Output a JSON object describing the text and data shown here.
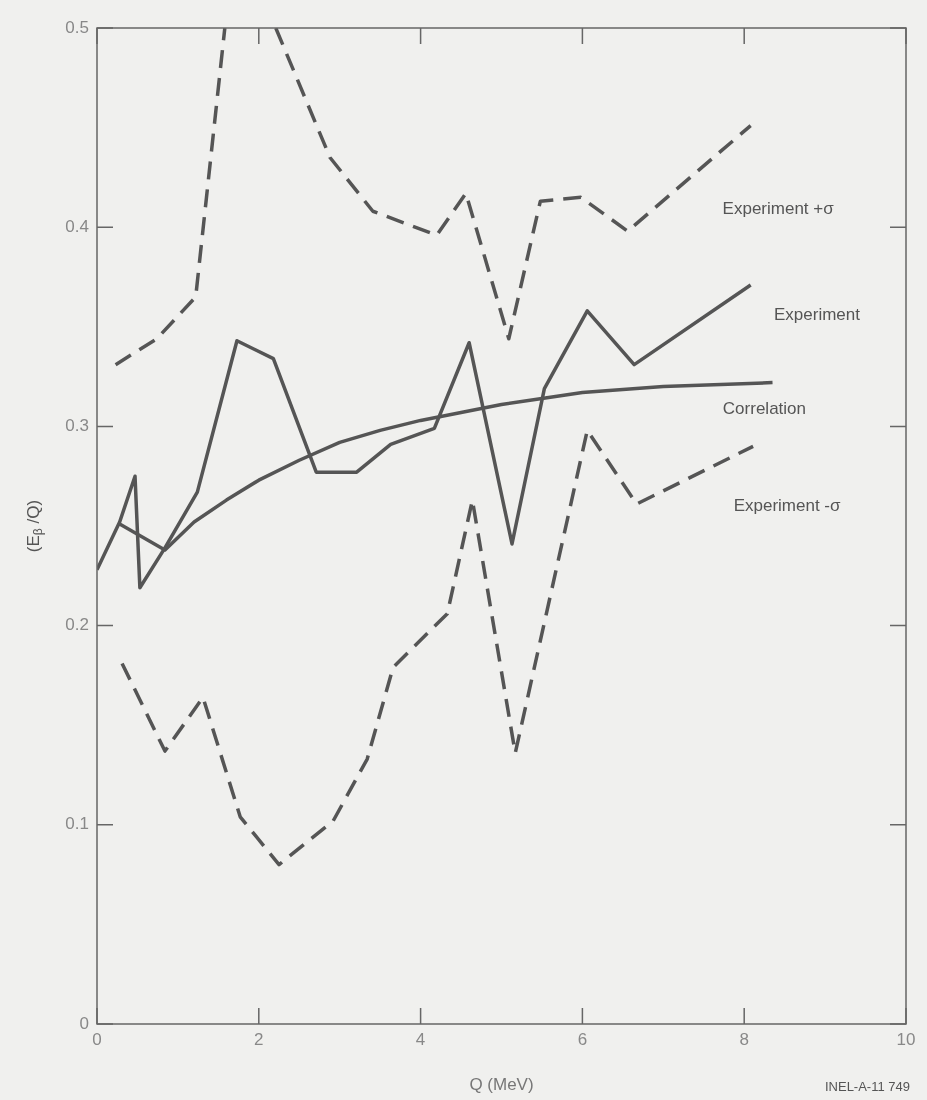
{
  "chart_data": {
    "type": "line",
    "xlabel": "Q (MeV)",
    "ylabel": "(E$_{β}$ /Q)",
    "xlim": [
      0,
      10
    ],
    "ylim": [
      0,
      0.5
    ],
    "xticks": [
      0,
      2,
      4,
      6,
      8,
      10
    ],
    "yticks": [
      0,
      0.1,
      0.2,
      0.3,
      0.4,
      0.5
    ],
    "grid": false,
    "legend": false,
    "marker": "none",
    "annotations": [
      "INEL-A-11 749"
    ],
    "series": [
      {
        "name": "Experiment +σ",
        "color": "#555555",
        "line_style": "dashed",
        "x": [
          0.23,
          0.74,
          1.22,
          1.58,
          1.9,
          2.21,
          2.88,
          3.41,
          4.2,
          4.56,
          5.09,
          5.48,
          5.98,
          6.56,
          8.08
        ],
        "values": [
          0.331,
          0.344,
          0.365,
          0.5,
          null,
          0.5,
          0.435,
          0.408,
          0.396,
          0.417,
          0.344,
          0.413,
          0.415,
          0.398,
          0.451
        ]
      },
      {
        "name": "Experiment",
        "color": "#555555",
        "line_style": "solid",
        "x": [
          0,
          0.28,
          0.47,
          0.53,
          0.84,
          1.24,
          1.73,
          2.18,
          2.71,
          3.21,
          3.63,
          4.17,
          4.6,
          5.13,
          5.53,
          6.06,
          6.64,
          8.08
        ],
        "values": [
          0.228,
          0.252,
          0.275,
          0.219,
          0.239,
          0.267,
          0.343,
          0.334,
          0.277,
          0.277,
          0.291,
          0.299,
          0.342,
          0.241,
          0.319,
          0.358,
          0.331,
          0.371
        ]
      },
      {
        "name": "Correlation",
        "color": "#555555",
        "line_style": "solid",
        "x": [
          0.28,
          0.84,
          1.2,
          1.6,
          2,
          2.5,
          3,
          3.5,
          4,
          4.5,
          5,
          5.5,
          6,
          7,
          8.35
        ],
        "values": [
          0.251,
          0.238,
          0.252,
          0.263,
          0.273,
          0.283,
          0.292,
          0.298,
          0.303,
          0.307,
          0.311,
          0.314,
          0.317,
          0.32,
          0.322
        ]
      },
      {
        "name": "Experiment -σ",
        "color": "#555555",
        "line_style": "dashed",
        "x": [
          0.31,
          0.84,
          1.31,
          1.77,
          2.25,
          2.92,
          3.34,
          3.66,
          4.33,
          4.64,
          5.17,
          6.06,
          6.67,
          8.11
        ],
        "values": [
          0.181,
          0.137,
          0.164,
          0.104,
          0.08,
          0.102,
          0.133,
          0.179,
          0.206,
          0.263,
          0.136,
          0.298,
          0.261,
          0.29
        ]
      }
    ]
  }
}
